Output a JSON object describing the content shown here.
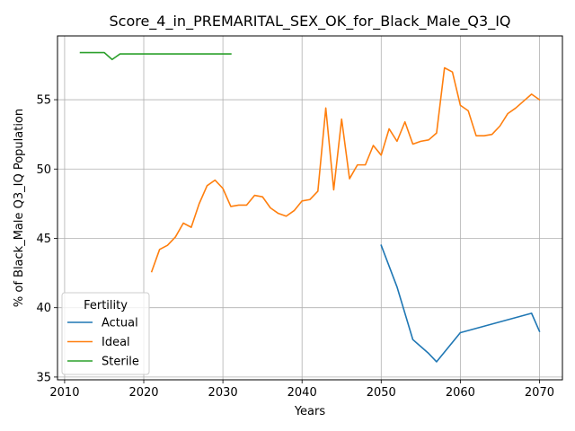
{
  "chart_data": {
    "type": "line",
    "title": "Score_4_in_PREMARITAL_SEX_OK_for_Black_Male_Q3_IQ",
    "xlabel": "Years",
    "ylabel": "% of Black_Male Q3_IQ Population",
    "xlim": [
      2009.1,
      2072.9
    ],
    "ylim": [
      34.8,
      59.6
    ],
    "xticks": [
      2010,
      2020,
      2030,
      2040,
      2050,
      2060,
      2070
    ],
    "yticks": [
      35,
      40,
      45,
      50,
      55
    ],
    "grid": true,
    "legend": {
      "title": "Fertility",
      "placement": "lower-left"
    },
    "series": [
      {
        "name": "Actual",
        "color": "#1f77b4",
        "points": [
          [
            2050,
            44.5
          ],
          [
            2052,
            41.5
          ],
          [
            2054,
            37.7
          ],
          [
            2056,
            36.7
          ],
          [
            2057,
            36.1
          ],
          [
            2060,
            38.2
          ],
          [
            2069,
            39.6
          ],
          [
            2070,
            38.3
          ]
        ]
      },
      {
        "name": "Ideal",
        "color": "#ff7f0e",
        "points": [
          [
            2021,
            42.6
          ],
          [
            2022,
            44.2
          ],
          [
            2023,
            44.5
          ],
          [
            2024,
            45.1
          ],
          [
            2025,
            46.1
          ],
          [
            2026,
            45.8
          ],
          [
            2027,
            47.5
          ],
          [
            2028,
            48.8
          ],
          [
            2029,
            49.2
          ],
          [
            2030,
            48.6
          ],
          [
            2031,
            47.3
          ],
          [
            2032,
            47.4
          ],
          [
            2033,
            47.4
          ],
          [
            2034,
            48.1
          ],
          [
            2035,
            48.0
          ],
          [
            2036,
            47.2
          ],
          [
            2037,
            46.8
          ],
          [
            2038,
            46.6
          ],
          [
            2039,
            47.0
          ],
          [
            2040,
            47.7
          ],
          [
            2041,
            47.8
          ],
          [
            2042,
            48.4
          ],
          [
            2043,
            54.4
          ],
          [
            2044,
            48.5
          ],
          [
            2045,
            53.6
          ],
          [
            2046,
            49.3
          ],
          [
            2047,
            50.3
          ],
          [
            2048,
            50.3
          ],
          [
            2049,
            51.7
          ],
          [
            2050,
            51.0
          ],
          [
            2051,
            52.9
          ],
          [
            2052,
            52.0
          ],
          [
            2053,
            53.4
          ],
          [
            2054,
            51.8
          ],
          [
            2055,
            52.0
          ],
          [
            2056,
            52.1
          ],
          [
            2057,
            52.6
          ],
          [
            2058,
            57.3
          ],
          [
            2059,
            57.0
          ],
          [
            2060,
            54.6
          ],
          [
            2061,
            54.2
          ],
          [
            2062,
            52.4
          ],
          [
            2063,
            52.4
          ],
          [
            2064,
            52.5
          ],
          [
            2065,
            53.1
          ],
          [
            2066,
            54.0
          ],
          [
            2067,
            54.4
          ],
          [
            2068,
            54.9
          ],
          [
            2069,
            55.4
          ],
          [
            2070,
            55.0
          ]
        ]
      },
      {
        "name": "Sterile",
        "color": "#2ca02c",
        "points": [
          [
            2012,
            58.4
          ],
          [
            2013,
            58.4
          ],
          [
            2014,
            58.4
          ],
          [
            2015,
            58.4
          ],
          [
            2016,
            57.9
          ],
          [
            2017,
            58.3
          ],
          [
            2018,
            58.3
          ],
          [
            2019,
            58.3
          ],
          [
            2020,
            58.3
          ],
          [
            2021,
            58.3
          ],
          [
            2022,
            58.3
          ],
          [
            2023,
            58.3
          ],
          [
            2024,
            58.3
          ],
          [
            2025,
            58.3
          ],
          [
            2026,
            58.3
          ],
          [
            2027,
            58.3
          ],
          [
            2028,
            58.3
          ],
          [
            2029,
            58.3
          ],
          [
            2030,
            58.3
          ],
          [
            2031,
            58.3
          ]
        ]
      }
    ]
  }
}
